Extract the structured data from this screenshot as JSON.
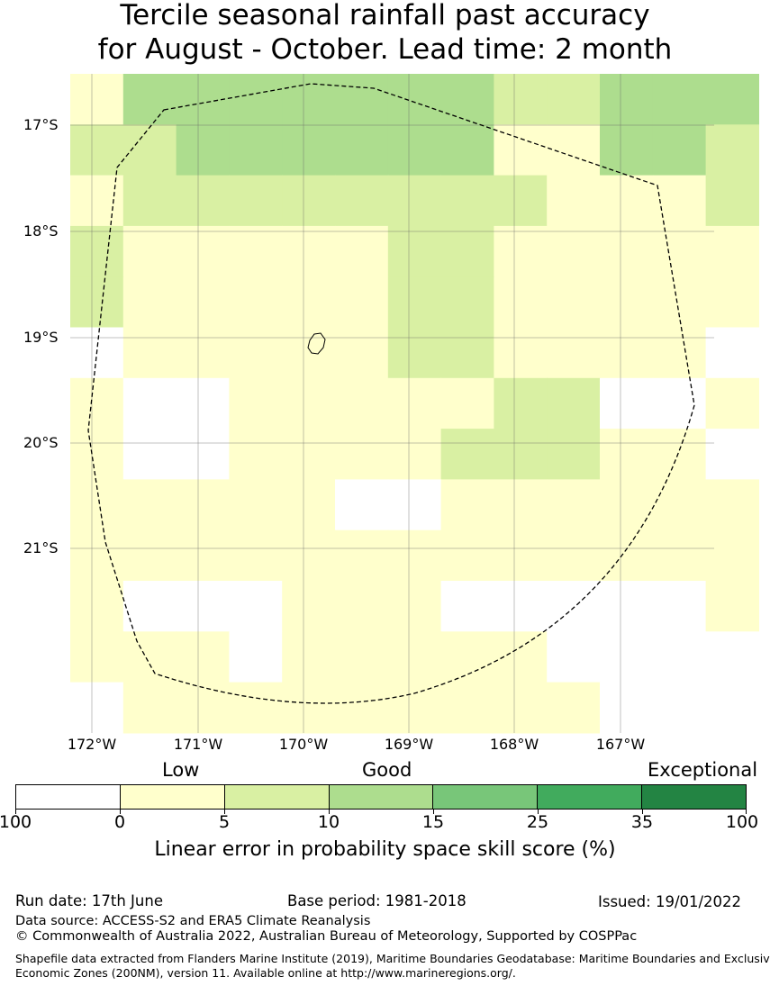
{
  "title": {
    "line1": "Tercile seasonal rainfall past accuracy",
    "line2": "for August - October. Lead time: 2 month"
  },
  "map": {
    "lat_labels": [
      "17°S",
      "18°S",
      "19°S",
      "20°S",
      "21°S"
    ],
    "lon_labels": [
      "172°W",
      "171°W",
      "170°W",
      "169°W",
      "168°W",
      "167°W"
    ],
    "cell_categories_note_legend": "0=<0 white, 1=0-5, 2=5-10, 3=10-15",
    "grid": [
      [
        1,
        3,
        3,
        3,
        3,
        3,
        3,
        3,
        2,
        2,
        3,
        3,
        3
      ],
      [
        2,
        2,
        3,
        3,
        3,
        3,
        3,
        3,
        1,
        1,
        3,
        3,
        2
      ],
      [
        1,
        2,
        2,
        2,
        2,
        2,
        2,
        2,
        2,
        1,
        1,
        1,
        2
      ],
      [
        2,
        1,
        1,
        1,
        1,
        1,
        2,
        2,
        1,
        1,
        1,
        1,
        1
      ],
      [
        2,
        1,
        1,
        1,
        1,
        1,
        2,
        2,
        1,
        1,
        1,
        1,
        1
      ],
      [
        0,
        1,
        1,
        1,
        1,
        1,
        2,
        2,
        1,
        1,
        1,
        1,
        0
      ],
      [
        1,
        0,
        0,
        1,
        1,
        1,
        1,
        1,
        2,
        2,
        0,
        0,
        1
      ],
      [
        1,
        0,
        0,
        1,
        1,
        1,
        1,
        2,
        2,
        2,
        1,
        1,
        0
      ],
      [
        1,
        1,
        1,
        1,
        1,
        0,
        0,
        1,
        1,
        1,
        1,
        1,
        1
      ],
      [
        1,
        1,
        1,
        1,
        1,
        1,
        1,
        1,
        1,
        1,
        1,
        1,
        1
      ],
      [
        1,
        0,
        0,
        0,
        1,
        1,
        1,
        0,
        0,
        0,
        0,
        0,
        1
      ],
      [
        1,
        1,
        1,
        0,
        1,
        1,
        1,
        1,
        1,
        0,
        0,
        0,
        0
      ],
      [
        0,
        1,
        1,
        1,
        1,
        1,
        1,
        1,
        1,
        1,
        0,
        0,
        0
      ]
    ]
  },
  "legend": {
    "category_labels": [
      "Low",
      "Good",
      "Exceptional"
    ],
    "colors": [
      "#ffffff",
      "#ffffcc",
      "#d9f0a3",
      "#addd8e",
      "#78c679",
      "#41ab5d",
      "#238443"
    ],
    "ticks": [
      "100",
      "0",
      "5",
      "10",
      "15",
      "25",
      "35",
      "100"
    ],
    "label": "Linear error in probability space skill score (%)"
  },
  "footer": {
    "run_date": "Run date: 17th June",
    "base_period": "Base period: 1981-2018",
    "issued": "Issued: 19/01/2022",
    "data_source": "Data source: ACCESS-S2 and ERA5 Climate Reanalysis",
    "copyright": "© Commonwealth of Australia 2022, Australian Bureau of Meteorology, Supported by COSPPac",
    "shapefile_line1": "Shapefile data extracted from Flanders Marine Institute (2019), Maritime Boundaries Geodatabase: Maritime Boundaries and Exclusive",
    "shapefile_line2": "Economic Zones (200NM), version 11. Available online at http://www.marineregions.org/."
  }
}
